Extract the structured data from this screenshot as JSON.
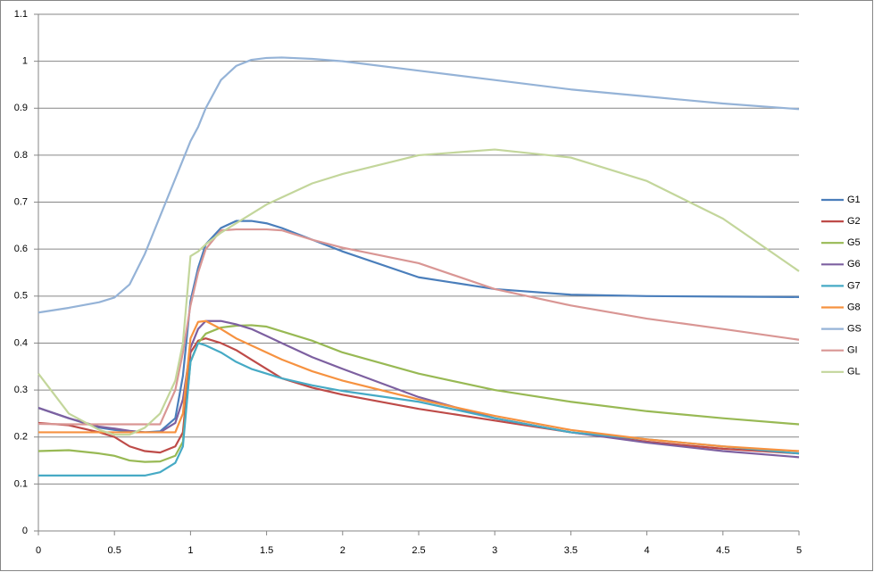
{
  "chart_data": {
    "type": "line",
    "x": [
      0,
      0.2,
      0.4,
      0.5,
      0.6,
      0.7,
      0.8,
      0.9,
      0.95,
      1,
      1.05,
      1.1,
      1.2,
      1.3,
      1.4,
      1.5,
      1.6,
      1.8,
      2,
      2.5,
      3,
      3.5,
      4,
      4.5,
      5
    ],
    "series": [
      {
        "name": "G1",
        "color": "#4a7ebb",
        "values": [
          0.262,
          0.24,
          0.22,
          0.215,
          0.212,
          0.21,
          0.212,
          0.24,
          0.33,
          0.49,
          0.56,
          0.61,
          0.645,
          0.66,
          0.66,
          0.655,
          0.645,
          0.62,
          0.595,
          0.54,
          0.515,
          0.503,
          0.5,
          0.499,
          0.498
        ]
      },
      {
        "name": "G2",
        "color": "#be4b48",
        "values": [
          0.23,
          0.225,
          0.21,
          0.2,
          0.18,
          0.17,
          0.167,
          0.18,
          0.21,
          0.38,
          0.405,
          0.41,
          0.4,
          0.385,
          0.365,
          0.345,
          0.325,
          0.305,
          0.29,
          0.26,
          0.235,
          0.21,
          0.19,
          0.175,
          0.165
        ]
      },
      {
        "name": "G5",
        "color": "#98b954",
        "values": [
          0.17,
          0.172,
          0.165,
          0.16,
          0.15,
          0.147,
          0.148,
          0.16,
          0.19,
          0.36,
          0.4,
          0.42,
          0.433,
          0.437,
          0.438,
          0.435,
          0.425,
          0.405,
          0.38,
          0.335,
          0.3,
          0.275,
          0.255,
          0.24,
          0.227
        ]
      },
      {
        "name": "G6",
        "color": "#7d60a0",
        "values": [
          0.262,
          0.24,
          0.222,
          0.218,
          0.213,
          0.21,
          0.21,
          0.23,
          0.28,
          0.39,
          0.43,
          0.447,
          0.447,
          0.44,
          0.43,
          0.415,
          0.4,
          0.37,
          0.345,
          0.285,
          0.24,
          0.21,
          0.188,
          0.17,
          0.157
        ]
      },
      {
        "name": "G7",
        "color": "#46aac5",
        "values": [
          0.118,
          0.118,
          0.118,
          0.118,
          0.118,
          0.118,
          0.125,
          0.145,
          0.18,
          0.36,
          0.4,
          0.395,
          0.38,
          0.36,
          0.345,
          0.335,
          0.325,
          0.31,
          0.298,
          0.275,
          0.24,
          0.21,
          0.195,
          0.18,
          0.165
        ]
      },
      {
        "name": "G8",
        "color": "#f69240",
        "values": [
          0.21,
          0.21,
          0.21,
          0.21,
          0.21,
          0.21,
          0.21,
          0.21,
          0.25,
          0.41,
          0.445,
          0.447,
          0.43,
          0.41,
          0.395,
          0.38,
          0.365,
          0.34,
          0.32,
          0.28,
          0.245,
          0.215,
          0.195,
          0.18,
          0.17
        ]
      },
      {
        "name": "GS",
        "color": "#95b3d7",
        "values": [
          0.465,
          0.475,
          0.487,
          0.497,
          0.525,
          0.59,
          0.67,
          0.75,
          0.79,
          0.83,
          0.86,
          0.9,
          0.96,
          0.99,
          1.003,
          1.007,
          1.008,
          1.005,
          1.0,
          0.98,
          0.96,
          0.94,
          0.925,
          0.91,
          0.898
        ]
      },
      {
        "name": "GI",
        "color": "#d99694",
        "values": [
          0.228,
          0.227,
          0.227,
          0.227,
          0.227,
          0.227,
          0.227,
          0.3,
          0.38,
          0.48,
          0.55,
          0.6,
          0.64,
          0.642,
          0.642,
          0.642,
          0.64,
          0.62,
          0.603,
          0.57,
          0.515,
          0.48,
          0.452,
          0.43,
          0.407
        ]
      },
      {
        "name": "GL",
        "color": "#c3d69b",
        "values": [
          0.335,
          0.25,
          0.215,
          0.205,
          0.205,
          0.22,
          0.25,
          0.32,
          0.4,
          0.585,
          0.595,
          0.61,
          0.635,
          0.655,
          0.675,
          0.695,
          0.71,
          0.74,
          0.76,
          0.8,
          0.812,
          0.795,
          0.745,
          0.665,
          0.553
        ]
      }
    ],
    "xlim": [
      0,
      5
    ],
    "xticks": [
      0,
      0.5,
      1,
      1.5,
      2,
      2.5,
      3,
      3.5,
      4,
      4.5,
      5
    ],
    "ylim": [
      0,
      1.1
    ],
    "yticks": [
      0,
      0.1,
      0.2,
      0.3,
      0.4,
      0.5,
      0.6,
      0.7,
      0.8,
      0.9,
      1,
      1.1
    ],
    "grid": true,
    "legend": "right"
  }
}
